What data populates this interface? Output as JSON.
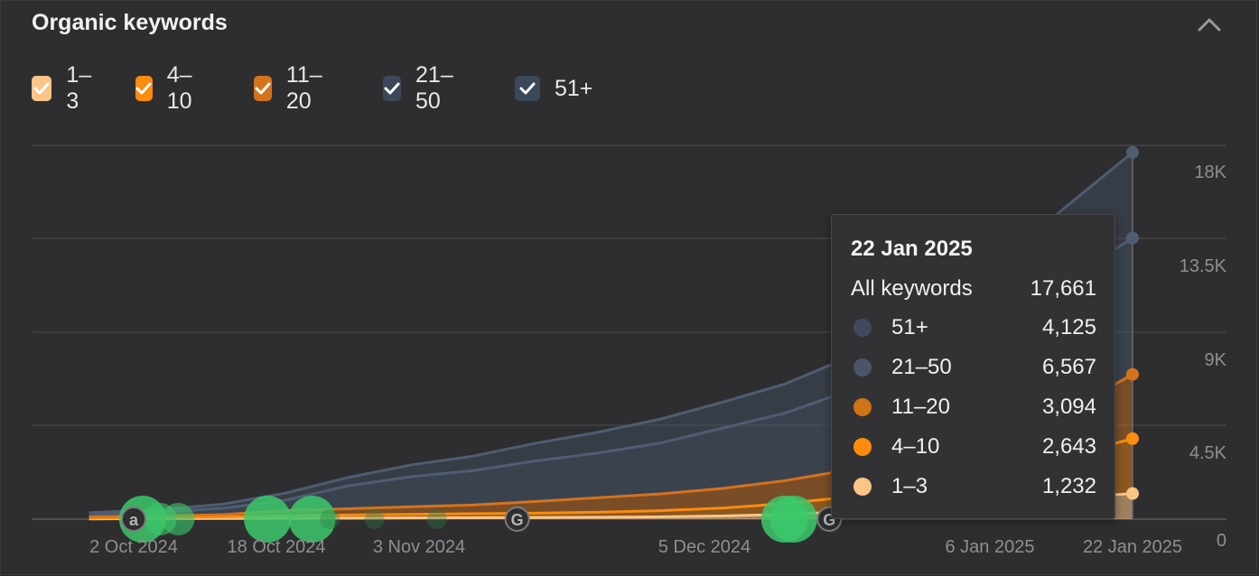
{
  "header": {
    "title": "Organic keywords"
  },
  "legend": {
    "items": [
      {
        "label": "1–3",
        "checked": true,
        "color": "#fbc587"
      },
      {
        "label": "4–10",
        "checked": true,
        "color": "#fb8c0e"
      },
      {
        "label": "11–20",
        "checked": true,
        "color": "#d5731d"
      },
      {
        "label": "21–50",
        "checked": true,
        "color": "#3c4859"
      },
      {
        "label": "51+",
        "checked": true,
        "color": "#3c4859"
      }
    ]
  },
  "tooltip": {
    "date": "22 Jan 2025",
    "total_label": "All keywords",
    "total_value": "17,661",
    "rows": [
      {
        "label": "51+",
        "value": "4,125",
        "color": "#3f4b5c"
      },
      {
        "label": "21–50",
        "value": "6,567",
        "color": "#4a5668"
      },
      {
        "label": "11–20",
        "value": "3,094",
        "color": "#cf7317"
      },
      {
        "label": "4–10",
        "value": "2,643",
        "color": "#fb8c0e"
      },
      {
        "label": "1–3",
        "value": "1,232",
        "color": "#fbc587"
      }
    ]
  },
  "chart_data": {
    "type": "area",
    "stacked": true,
    "title": "Organic keywords",
    "x_ticks": [
      "2 Oct 2024",
      "18 Oct 2024",
      "3 Nov 2024",
      "5 Dec 2024",
      "6 Jan 2025",
      "22 Jan 2025"
    ],
    "y_ticks": [
      "0",
      "4.5K",
      "9K",
      "13.5K",
      "18K"
    ],
    "ylim": [
      0,
      18000
    ],
    "x_start": "2024-09-27",
    "x_end": "2025-01-22",
    "x": [
      "2024-09-27",
      "2024-10-05",
      "2024-10-12",
      "2024-10-19",
      "2024-10-26",
      "2024-11-02",
      "2024-11-09",
      "2024-11-16",
      "2024-11-23",
      "2024-11-30",
      "2024-12-07",
      "2024-12-14",
      "2024-12-21",
      "2024-12-28",
      "2025-01-04",
      "2025-01-11",
      "2025-01-22"
    ],
    "series": [
      {
        "name": "1–3",
        "color": "#fbc587",
        "values": [
          10,
          20,
          30,
          40,
          50,
          60,
          70,
          80,
          90,
          110,
          150,
          230,
          360,
          500,
          700,
          900,
          1232
        ]
      },
      {
        "name": "4–10",
        "color": "#fb8c0e",
        "values": [
          40,
          60,
          80,
          120,
          150,
          170,
          190,
          210,
          240,
          300,
          380,
          520,
          700,
          900,
          1200,
          1700,
          2643
        ]
      },
      {
        "name": "11–20",
        "color": "#d5731d",
        "values": [
          60,
          80,
          110,
          250,
          300,
          360,
          420,
          560,
          700,
          800,
          950,
          1100,
          1300,
          1400,
          1500,
          1700,
          3094
        ]
      },
      {
        "name": "21–50",
        "color": "#3c4859",
        "values": [
          140,
          180,
          300,
          500,
          1100,
          1450,
          1650,
          1950,
          2150,
          2450,
          2900,
          3250,
          3800,
          4300,
          5100,
          6200,
          6567
        ]
      },
      {
        "name": "51+",
        "color": "#3c4859",
        "values": [
          60,
          120,
          200,
          340,
          400,
          560,
          700,
          850,
          1000,
          1150,
          1250,
          1400,
          1600,
          1800,
          2200,
          3300,
          4125
        ]
      }
    ],
    "annotations": [
      {
        "date": "2024-10-02",
        "kind": "a"
      },
      {
        "date": "2024-11-14",
        "kind": "G"
      },
      {
        "date": "2024-12-19",
        "kind": "G"
      }
    ],
    "events": [
      {
        "date": "2024-10-03",
        "size": "large"
      },
      {
        "date": "2024-10-05",
        "size": "medium"
      },
      {
        "date": "2024-10-07",
        "size": "medium"
      },
      {
        "date": "2024-10-17",
        "size": "large"
      },
      {
        "date": "2024-10-22",
        "size": "large"
      },
      {
        "date": "2024-10-24",
        "size": "small"
      },
      {
        "date": "2024-10-29",
        "size": "small"
      },
      {
        "date": "2024-11-05",
        "size": "small"
      },
      {
        "date": "2024-12-14",
        "size": "large"
      },
      {
        "date": "2024-12-15",
        "size": "large"
      }
    ],
    "legend_position": "top-left",
    "grid": true
  }
}
